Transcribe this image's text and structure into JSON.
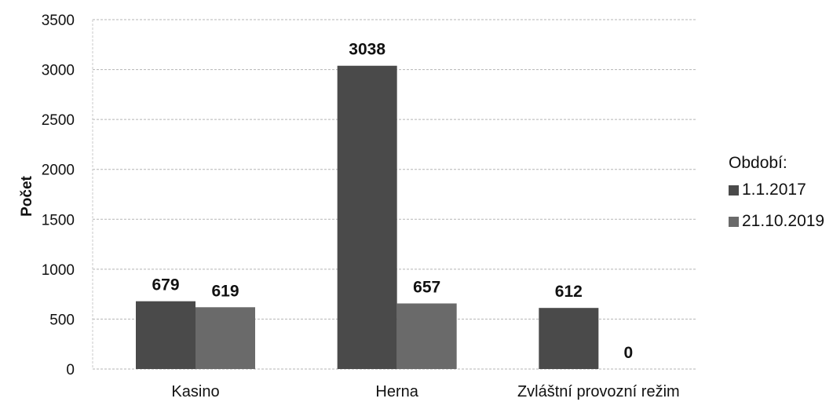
{
  "chart_data": {
    "type": "bar",
    "categories": [
      "Kasino",
      "Herna",
      "Zvláštní provozní režim"
    ],
    "series": [
      {
        "name": "1.1.2017",
        "values": [
          679,
          3038,
          612
        ],
        "color": "#4a4a4a"
      },
      {
        "name": "21.10.2019",
        "values": [
          619,
          657,
          0
        ],
        "color": "#6a6a6a"
      }
    ],
    "ylabel": "Počet",
    "ylim": [
      0,
      3500
    ],
    "yticks": [
      "0",
      "500",
      "1000",
      "1500",
      "2000",
      "2500",
      "3000",
      "3500"
    ],
    "grid": true,
    "legend_title": "Období:",
    "legend_position": "right"
  }
}
